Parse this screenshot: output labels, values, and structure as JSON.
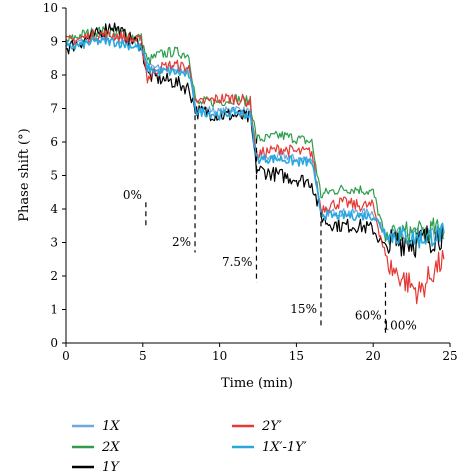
{
  "chart_data": {
    "type": "line",
    "xlabel": "Time (min)",
    "ylabel": "Phase shift (°)",
    "xlim": [
      0,
      25
    ],
    "ylim": [
      0,
      10
    ],
    "xticks": [
      "0",
      "5",
      "10",
      "15",
      "20",
      "25"
    ],
    "yticks": [
      "0",
      "1",
      "2",
      "3",
      "4",
      "5",
      "6",
      "7",
      "8",
      "9",
      "10"
    ],
    "grid": false,
    "legend_position": "bottom",
    "annotations": [
      {
        "label": "0%",
        "x": 5.2,
        "y": 4.3
      },
      {
        "label": "2%",
        "x": 8.4,
        "y": 2.9
      },
      {
        "label": "7.5%",
        "x": 12.4,
        "y": 2.3
      },
      {
        "label": "15%",
        "x": 16.6,
        "y": 0.9
      },
      {
        "label": "60%",
        "x": 20.8,
        "y": 0.7
      },
      {
        "label": "100%",
        "x": 23.1,
        "y": 0.4
      }
    ],
    "marker_lines": [
      {
        "x": 5.2,
        "y_top": 4.2,
        "y_bottom": 3.4
      },
      {
        "x": 8.4,
        "y_top": 6.8,
        "y_bottom": 2.7
      },
      {
        "x": 12.4,
        "y_top": 6.1,
        "y_bottom": 1.8
      },
      {
        "x": 16.6,
        "y_top": 3.9,
        "y_bottom": 0.5
      },
      {
        "x": 20.8,
        "y_top": 1.8,
        "y_bottom": 0.3
      }
    ],
    "series": [
      {
        "name": "1X",
        "color": "#6fa8dc",
        "x": [
          0,
          1,
          2,
          3,
          4,
          4.9,
          5.3,
          6,
          7,
          8,
          8.5,
          9,
          10,
          11,
          12,
          12.4,
          13,
          14,
          15,
          16,
          16.6,
          17,
          18,
          19,
          20,
          20.8,
          21,
          22,
          23,
          24,
          24.6
        ],
        "y": [
          8.9,
          9.0,
          9.1,
          9.1,
          9.0,
          8.9,
          8.3,
          8.2,
          8.2,
          8.1,
          7.0,
          7.0,
          6.9,
          7.0,
          6.9,
          5.6,
          5.5,
          5.6,
          5.5,
          5.5,
          3.9,
          3.9,
          3.9,
          3.9,
          3.9,
          3.2,
          3.2,
          3.2,
          3.2,
          3.2,
          3.1
        ]
      },
      {
        "name": "2X",
        "color": "#2e9e4d",
        "x": [
          0,
          1,
          2,
          3,
          4,
          4.9,
          5.3,
          6,
          7,
          8,
          8.5,
          9,
          10,
          11,
          12,
          12.4,
          13,
          14,
          15,
          16,
          16.6,
          17,
          18,
          19,
          20,
          20.8,
          21,
          22,
          23,
          24,
          24.6
        ],
        "y": [
          9.0,
          9.2,
          9.3,
          9.3,
          9.2,
          9.1,
          8.4,
          8.6,
          8.7,
          8.6,
          7.1,
          7.2,
          7.2,
          7.3,
          7.2,
          6.1,
          6.1,
          6.2,
          6.1,
          6.0,
          4.4,
          4.5,
          4.6,
          4.6,
          4.5,
          3.1,
          3.2,
          3.3,
          3.3,
          3.4,
          3.3
        ]
      },
      {
        "name": "1Y",
        "color": "#000000",
        "x": [
          0,
          1,
          2,
          3,
          4,
          4.9,
          5.3,
          6,
          7,
          8,
          8.5,
          9,
          10,
          11,
          12,
          12.4,
          13,
          14,
          15,
          16,
          16.6,
          17,
          18,
          19,
          20,
          20.8,
          21,
          22,
          23,
          24,
          24.6
        ],
        "y": [
          8.8,
          9.0,
          9.2,
          9.5,
          9.1,
          8.9,
          8.0,
          7.9,
          7.8,
          7.6,
          6.9,
          6.9,
          6.8,
          6.8,
          6.7,
          5.2,
          5.1,
          5.0,
          4.9,
          4.8,
          3.8,
          3.6,
          3.5,
          3.5,
          3.4,
          2.8,
          2.9,
          3.1,
          3.0,
          3.2,
          3.3
        ]
      },
      {
        "name": "2Y′",
        "color": "#e53935",
        "x": [
          0,
          1,
          2,
          3,
          4,
          4.9,
          5.3,
          6,
          7,
          8,
          8.5,
          9,
          10,
          11,
          12,
          12.4,
          13,
          14,
          15,
          16,
          16.6,
          17,
          18,
          19,
          20,
          20.8,
          21,
          22,
          23,
          24,
          24.6
        ],
        "y": [
          9.0,
          9.1,
          9.2,
          9.2,
          9.1,
          9.0,
          7.9,
          8.2,
          8.3,
          8.2,
          7.1,
          7.2,
          7.3,
          7.3,
          7.2,
          5.6,
          5.7,
          5.8,
          5.7,
          5.7,
          4.0,
          4.1,
          4.2,
          4.1,
          4.1,
          2.6,
          2.3,
          1.9,
          1.5,
          2.2,
          2.5
        ]
      },
      {
        "name": "1X′-1Y′",
        "color": "#29a8e0",
        "x": [
          0,
          1,
          2,
          3,
          4,
          4.9,
          5.3,
          6,
          7,
          8,
          8.5,
          9,
          10,
          11,
          12,
          12.4,
          13,
          14,
          15,
          16,
          16.6,
          17,
          18,
          19,
          20,
          20.8,
          21,
          22,
          23,
          24,
          24.6
        ],
        "y": [
          8.8,
          8.9,
          9.0,
          9.0,
          8.9,
          8.8,
          8.2,
          8.1,
          8.1,
          8.0,
          6.9,
          6.9,
          6.8,
          6.9,
          6.8,
          5.5,
          5.5,
          5.5,
          5.4,
          5.4,
          3.9,
          3.8,
          3.8,
          3.8,
          3.8,
          3.3,
          3.2,
          3.2,
          3.1,
          3.2,
          3.3
        ]
      }
    ]
  }
}
